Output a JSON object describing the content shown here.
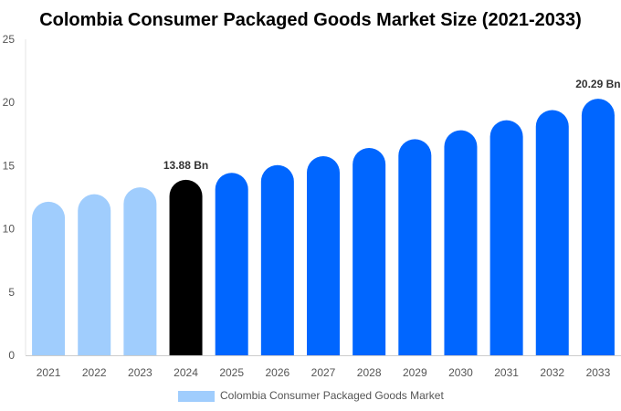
{
  "chart_data": {
    "type": "bar",
    "title": "Colombia Consumer Packaged Goods Market Size (2021-2033)",
    "categories": [
      "2021",
      "2022",
      "2023",
      "2024",
      "2025",
      "2026",
      "2027",
      "2028",
      "2029",
      "2030",
      "2031",
      "2032",
      "2033"
    ],
    "series": [
      {
        "name": "Colombia Consumer Packaged Goods Market",
        "values": [
          12.15,
          12.74,
          13.29,
          13.88,
          14.43,
          15.05,
          15.75,
          16.4,
          17.1,
          17.8,
          18.6,
          19.4,
          20.29
        ]
      }
    ],
    "bar_colors": {
      "historical": "#a0cdfd",
      "base_year": "#000000",
      "forecast": "#0066ff"
    },
    "color_by_category": [
      "historical",
      "historical",
      "historical",
      "base_year",
      "forecast",
      "forecast",
      "forecast",
      "forecast",
      "forecast",
      "forecast",
      "forecast",
      "forecast",
      "forecast"
    ],
    "data_labels": {
      "3": "13.88 Bn",
      "12": "20.29 Bn"
    },
    "ylim": [
      0,
      25
    ],
    "yticks": [
      "0",
      "5",
      "10",
      "15",
      "20",
      "25"
    ],
    "grid": false,
    "legend_position": "bottom",
    "xlabel": "",
    "ylabel": ""
  }
}
